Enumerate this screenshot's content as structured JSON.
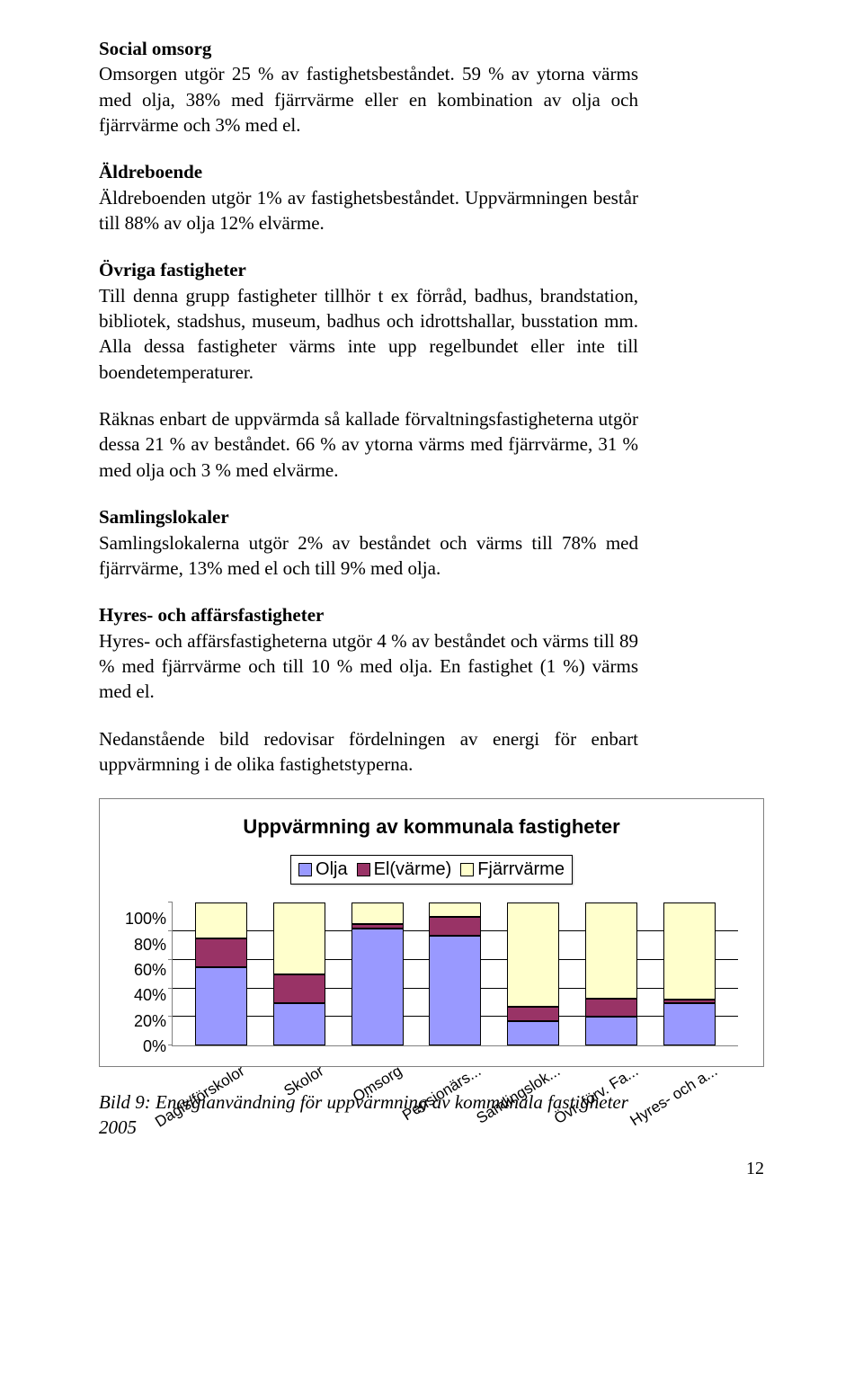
{
  "sections": {
    "social_omsorg": {
      "heading": "Social omsorg",
      "body": "Omsorgen utgör 25 % av fastighetsbeståndet. 59 % av ytorna värms med olja, 38% med fjärrvärme eller en kombination av olja och fjärrvärme och 3% med el."
    },
    "aldreboende": {
      "heading": "Äldreboende",
      "body": "Äldreboenden utgör 1% av fastighetsbeståndet. Uppvärmningen består till 88% av olja 12% elvärme."
    },
    "ovriga": {
      "heading": "Övriga fastigheter",
      "body": "Till denna grupp fastigheter tillhör t ex förråd, badhus, brandstation, bibliotek, stadshus, museum, badhus och idrottshallar, busstation mm. Alla dessa fastigheter värms inte upp regelbundet eller inte till boendetemperaturer."
    },
    "ovriga_p2": "Räknas enbart de uppvärmda så kallade förvaltningsfastigheterna utgör dessa 21 % av beståndet. 66 % av ytorna värms med fjärrvärme, 31 % med olja och 3 % med elvärme.",
    "samlingslokaler": {
      "heading": "Samlingslokaler",
      "body": "Samlingslokalerna utgör 2% av beståndet och värms till 78% med fjärrvärme, 13% med el och till 9% med olja."
    },
    "hyres": {
      "heading": "Hyres- och affärsfastigheter",
      "body": "Hyres- och affärsfastigheterna utgör 4 % av beståndet och värms till 89 % med fjärrvärme och till 10 % med olja. En fastighet (1 %) värms med el."
    },
    "lead_in": "Nedanstående bild redovisar fördelningen av energi för enbart uppvärmning i de olika fastighetstyperna."
  },
  "chart": {
    "title": "Uppvärmning av kommunala fastigheter",
    "legend": [
      {
        "label": "Olja",
        "color": "#9999ff"
      },
      {
        "label": "El(värme)",
        "color": "#993366"
      },
      {
        "label": "Fjärrvärme",
        "color": "#ffffcc"
      }
    ],
    "y_ticks": [
      "100%",
      "80%",
      "60%",
      "40%",
      "20%",
      "0%"
    ],
    "grid_color": "#000000",
    "axis_color": "#808080",
    "background": "#ffffff",
    "categories": [
      {
        "label": "Dagis/förskolor",
        "olja": 55,
        "el": 20,
        "fjarr": 25
      },
      {
        "label": "Skolor",
        "olja": 30,
        "el": 20,
        "fjarr": 50
      },
      {
        "label": "Omsorg",
        "olja": 82,
        "el": 3,
        "fjarr": 15
      },
      {
        "label": "Pensionärs...",
        "olja": 77,
        "el": 13,
        "fjarr": 10
      },
      {
        "label": "Samlingslok...",
        "olja": 17,
        "el": 10,
        "fjarr": 73
      },
      {
        "label": "Övr. förv. Fa...",
        "olja": 20,
        "el": 13,
        "fjarr": 67
      },
      {
        "label": "Hyres- och a...",
        "olja": 30,
        "el": 2,
        "fjarr": 68
      }
    ]
  },
  "caption": "Bild 9: Energianvändning för uppvärmning av kommunala fastigheter 2005",
  "page_number": "12"
}
